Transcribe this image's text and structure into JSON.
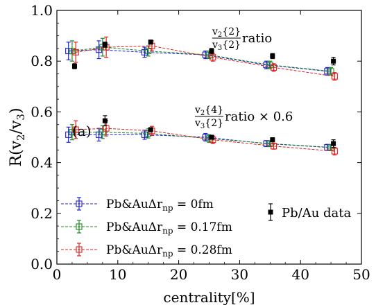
{
  "chart_data": {
    "type": "scatter",
    "xlabel_main": "centrality",
    "xlabel_unit": "[%]",
    "ylabel_main": "R(v",
    "ylabel_sub1": "2",
    "ylabel_mid": "/v",
    "ylabel_sub2": "3",
    "ylabel_end": ")",
    "panel_label": "(a)",
    "xlim": [
      0,
      50
    ],
    "ylim": [
      0.0,
      1.0
    ],
    "xticks": [
      0,
      10,
      20,
      30,
      40,
      50
    ],
    "yticks": [
      0.0,
      0.2,
      0.4,
      0.6,
      0.8,
      1.0
    ],
    "xtick_labels": [
      "0",
      "10",
      "20",
      "30",
      "40",
      "50"
    ],
    "ytick_labels": [
      "0.0",
      "0.2",
      "0.4",
      "0.6",
      "0.8",
      "1.0"
    ],
    "annotations": [
      {
        "num": "v2{2}",
        "den": "v3{2}",
        "suffix": "ratio"
      },
      {
        "num": "v2{4}",
        "den": "v3{2}",
        "suffix": "ratio × 0.6"
      }
    ],
    "series": [
      {
        "name": "Pb&AuΔr_np = 0fm",
        "color": "#1f1fd6",
        "group_upper": [
          {
            "x": 2.5,
            "y": 0.84,
            "err": 0.035
          },
          {
            "x": 7.5,
            "y": 0.845,
            "err": 0.035
          },
          {
            "x": 15,
            "y": 0.835,
            "err": 0.02
          },
          {
            "x": 25,
            "y": 0.825,
            "err": 0.015
          },
          {
            "x": 35,
            "y": 0.785,
            "err": 0.015
          },
          {
            "x": 45,
            "y": 0.76,
            "err": 0.015
          }
        ],
        "group_lower": [
          {
            "x": 2.5,
            "y": 0.51,
            "err": 0.03
          },
          {
            "x": 7.5,
            "y": 0.51,
            "err": 0.025
          },
          {
            "x": 15,
            "y": 0.51,
            "err": 0.018
          },
          {
            "x": 25,
            "y": 0.5,
            "err": 0.015
          },
          {
            "x": 35,
            "y": 0.475,
            "err": 0.012
          },
          {
            "x": 45,
            "y": 0.46,
            "err": 0.012
          }
        ]
      },
      {
        "name": "Pb&AuΔr_np = 0.17fm",
        "color": "#1f8a1f",
        "group_upper": [
          {
            "x": 2.5,
            "y": 0.84,
            "err": 0.04
          },
          {
            "x": 7.5,
            "y": 0.855,
            "err": 0.035
          },
          {
            "x": 15,
            "y": 0.84,
            "err": 0.02
          },
          {
            "x": 25,
            "y": 0.825,
            "err": 0.015
          },
          {
            "x": 35,
            "y": 0.785,
            "err": 0.015
          },
          {
            "x": 45,
            "y": 0.76,
            "err": 0.015
          }
        ],
        "group_lower": [
          {
            "x": 2.5,
            "y": 0.52,
            "err": 0.03
          },
          {
            "x": 7.5,
            "y": 0.52,
            "err": 0.025
          },
          {
            "x": 15,
            "y": 0.515,
            "err": 0.018
          },
          {
            "x": 25,
            "y": 0.495,
            "err": 0.015
          },
          {
            "x": 35,
            "y": 0.475,
            "err": 0.012
          },
          {
            "x": 45,
            "y": 0.46,
            "err": 0.012
          }
        ]
      },
      {
        "name": "Pb&AuΔr_np = 0.28fm",
        "color": "#e02020",
        "group_upper": [
          {
            "x": 2.5,
            "y": 0.835,
            "err": 0.04
          },
          {
            "x": 7.5,
            "y": 0.855,
            "err": 0.04
          },
          {
            "x": 15,
            "y": 0.86,
            "err": 0.02
          },
          {
            "x": 25,
            "y": 0.815,
            "err": 0.015
          },
          {
            "x": 35,
            "y": 0.775,
            "err": 0.015
          },
          {
            "x": 45,
            "y": 0.74,
            "err": 0.015
          }
        ],
        "group_lower": [
          {
            "x": 2.5,
            "y": 0.53,
            "err": 0.035
          },
          {
            "x": 7.5,
            "y": 0.535,
            "err": 0.03
          },
          {
            "x": 15,
            "y": 0.525,
            "err": 0.018
          },
          {
            "x": 25,
            "y": 0.49,
            "err": 0.015
          },
          {
            "x": 35,
            "y": 0.465,
            "err": 0.012
          },
          {
            "x": 45,
            "y": 0.445,
            "err": 0.015
          }
        ]
      },
      {
        "name": "Pb/Au data",
        "color": "#000000",
        "group_upper": [
          {
            "x": 2.5,
            "y": 0.78,
            "err": 0.01
          },
          {
            "x": 7.5,
            "y": 0.865,
            "err": 0.01
          },
          {
            "x": 15,
            "y": 0.875,
            "err": 0.008
          },
          {
            "x": 25,
            "y": 0.84,
            "err": 0.01
          },
          {
            "x": 35,
            "y": 0.82,
            "err": 0.01
          },
          {
            "x": 45,
            "y": 0.8,
            "err": 0.015
          }
        ],
        "group_lower": [
          {
            "x": 7.5,
            "y": 0.565,
            "err": 0.02
          },
          {
            "x": 15,
            "y": 0.53,
            "err": 0.008
          },
          {
            "x": 25,
            "y": 0.5,
            "err": 0.008
          },
          {
            "x": 35,
            "y": 0.49,
            "err": 0.008
          },
          {
            "x": 45,
            "y": 0.475,
            "err": 0.015
          }
        ]
      }
    ],
    "legend_left": [
      {
        "prefix": "Pb&AuΔr",
        "sub": "np",
        "suffix": " = 0fm"
      },
      {
        "prefix": "Pb&AuΔr",
        "sub": "np",
        "suffix": " = 0.17fm"
      },
      {
        "prefix": "Pb&AuΔr",
        "sub": "np",
        "suffix": " = 0.28fm"
      }
    ],
    "legend_right": "Pb/Au data"
  }
}
